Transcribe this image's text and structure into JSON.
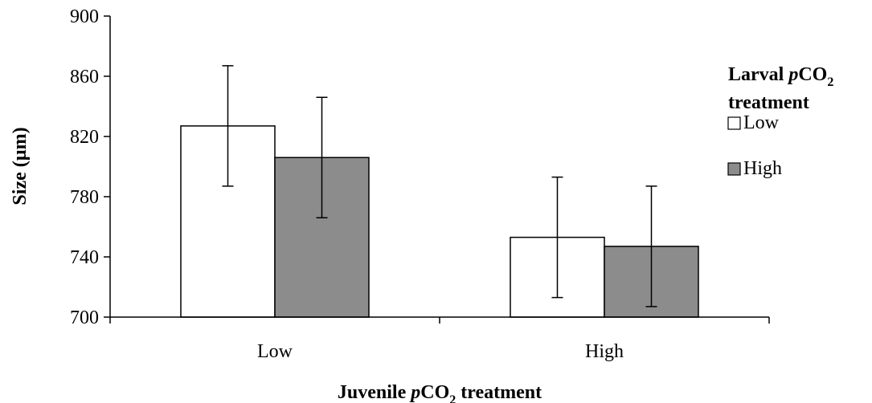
{
  "chart_data": {
    "type": "bar",
    "categories": [
      "Low",
      "High"
    ],
    "series": [
      {
        "name": "Low",
        "values": [
          827,
          753
        ],
        "error": [
          40,
          40
        ],
        "color": "#ffffff"
      },
      {
        "name": "High",
        "values": [
          806,
          747
        ],
        "error": [
          40,
          40
        ],
        "color": "#8c8c8c"
      }
    ],
    "ylim": [
      700,
      900
    ],
    "yticks": [
      "700",
      "740",
      "780",
      "820",
      "860",
      "900"
    ],
    "ylabel": "Size (µm)",
    "xlabel": {
      "prefix": "Juvenile ",
      "italic": "p",
      "chem": "CO",
      "sub": "2",
      "suffix": " treatment"
    },
    "legend": {
      "title_line1": {
        "prefix": "Larval ",
        "italic": "p",
        "chem": "CO",
        "sub": "2"
      },
      "title_line2": "treatment",
      "placement": "right"
    },
    "grid": false
  }
}
